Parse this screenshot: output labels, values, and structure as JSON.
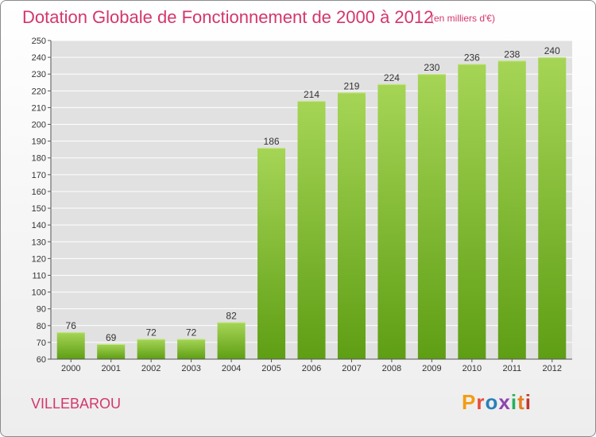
{
  "header": {
    "title": "Dotation Globale de Fonctionnement de 2000 à 2012",
    "unit_note": "(en milliers d'€)"
  },
  "footer": {
    "commune": "VILLEBAROU",
    "logo_text": "Proxiti",
    "logo_colors": [
      "#f39c12",
      "#e74c3c",
      "#2980b9",
      "#8e44ad",
      "#27ae60",
      "#e67e22",
      "#c0392b"
    ]
  },
  "colors": {
    "accent": "#d4366c",
    "bar_top": "#a6d556",
    "bar_bottom": "#5e9e14",
    "plot_bg": "#e1e1e1",
    "grid": "#ffffff"
  },
  "chart_data": {
    "type": "bar",
    "title": "Dotation Globale de Fonctionnement de 2000 à 2012",
    "subtitle": "(en milliers d'€)",
    "xlabel": "",
    "ylabel": "",
    "categories": [
      "2000",
      "2001",
      "2002",
      "2003",
      "2004",
      "2005",
      "2006",
      "2007",
      "2008",
      "2009",
      "2010",
      "2011",
      "2012"
    ],
    "values": [
      76,
      69,
      72,
      72,
      82,
      186,
      214,
      219,
      224,
      230,
      236,
      238,
      240
    ],
    "ylim": [
      60,
      250
    ],
    "ytick_step": 10,
    "grid": true,
    "legend": "none"
  }
}
